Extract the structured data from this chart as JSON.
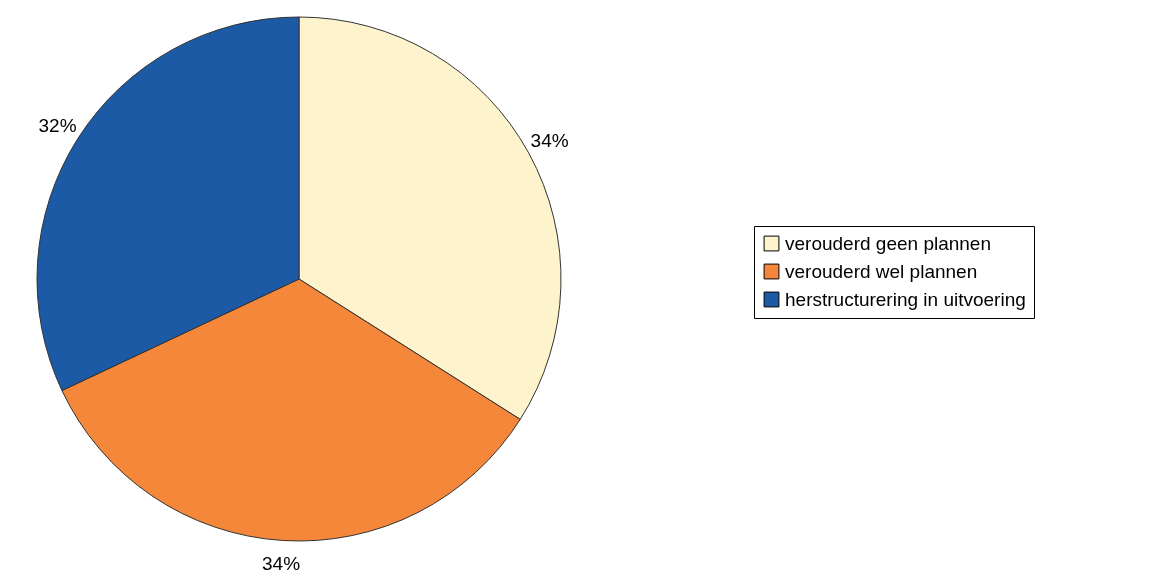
{
  "chart_data": {
    "type": "pie",
    "categories": [
      "verouderd geen plannen",
      "verouderd wel plannen",
      "herstructurering in uitvoering"
    ],
    "values": [
      34,
      34,
      32
    ],
    "colors": [
      "#fdf3cc",
      "#f5873a",
      "#1d5aa5"
    ],
    "value_labels": [
      "34%",
      "34%",
      "32%"
    ],
    "legend": "right"
  }
}
